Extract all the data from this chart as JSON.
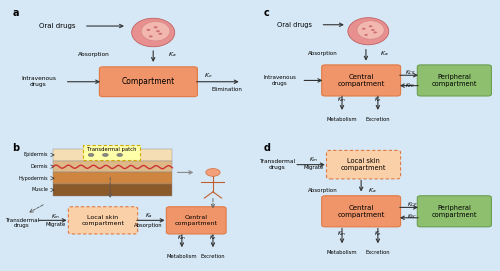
{
  "bg_color": "#D6E8F5",
  "box_orange": "#F0956A",
  "box_orange_edge": "#E07A45",
  "box_green": "#8DBF6E",
  "box_green_edge": "#6A9E50",
  "stomach_outer": "#E8908A",
  "stomach_inner": "#F2B8B0",
  "stomach_edge": "#CC6060",
  "arrow_color": "#333333",
  "layer_colors": [
    "#F5DEB3",
    "#DEB887",
    "#CD853F",
    "#8B5A2B"
  ],
  "layer_names": [
    "Epidermis",
    "Dermis",
    "Hypodermis",
    "Muscle"
  ],
  "patch_fill": "#FFFFAA",
  "patch_edge": "#CCAA00"
}
